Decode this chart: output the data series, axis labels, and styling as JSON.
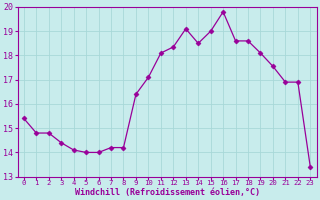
{
  "x": [
    0,
    1,
    2,
    3,
    4,
    5,
    6,
    7,
    8,
    9,
    10,
    11,
    12,
    13,
    14,
    15,
    16,
    17,
    18,
    19,
    20,
    21,
    22,
    23
  ],
  "y": [
    15.4,
    14.8,
    14.8,
    14.4,
    14.1,
    14.0,
    14.0,
    14.2,
    14.2,
    16.4,
    17.1,
    18.1,
    18.35,
    19.1,
    18.5,
    19.0,
    19.8,
    18.6,
    18.6,
    18.1,
    17.55,
    16.9,
    16.9,
    13.4
  ],
  "line_color": "#990099",
  "marker": "D",
  "marker_size": 2.5,
  "bg_color": "#c8ecec",
  "grid_color": "#a8d8d8",
  "xlabel": "Windchill (Refroidissement éolien,°C)",
  "ylabel": "",
  "xlim": [
    -0.5,
    23.5
  ],
  "ylim": [
    13,
    20
  ],
  "yticks": [
    13,
    14,
    15,
    16,
    17,
    18,
    19,
    20
  ],
  "xticks": [
    0,
    1,
    2,
    3,
    4,
    5,
    6,
    7,
    8,
    9,
    10,
    11,
    12,
    13,
    14,
    15,
    16,
    17,
    18,
    19,
    20,
    21,
    22,
    23
  ],
  "tick_color": "#990099",
  "label_color": "#990099",
  "spine_color": "#990099",
  "font_family": "monospace",
  "xlabel_fontsize": 6.0,
  "xtick_fontsize": 5.2,
  "ytick_fontsize": 6.0
}
